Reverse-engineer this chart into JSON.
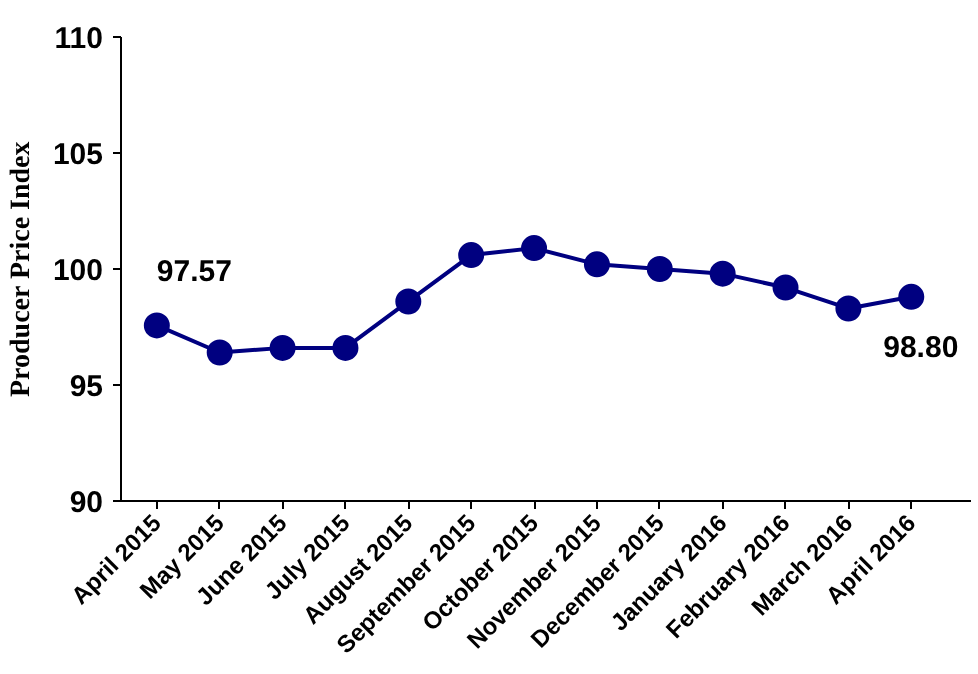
{
  "chart_data": {
    "type": "line",
    "ylabel": "Producer Price Index",
    "categories": [
      "April 2015",
      "May 2015",
      "June 2015",
      "July 2015",
      "August 2015",
      "September 2015",
      "October 2015",
      "November 2015",
      "December 2015",
      "January 2016",
      "February 2016",
      "March 2016",
      "April 2016"
    ],
    "series": [
      {
        "color": "#000080",
        "values": [
          97.57,
          96.4,
          96.6,
          96.6,
          98.6,
          100.6,
          100.9,
          100.2,
          100.0,
          99.8,
          99.2,
          98.3,
          98.8
        ],
        "value_labels": [
          "97.57",
          null,
          null,
          null,
          null,
          null,
          null,
          null,
          null,
          null,
          null,
          null,
          "98.80"
        ]
      }
    ],
    "ylim": [
      90,
      110
    ],
    "yticks": [
      90,
      95,
      100,
      105,
      110
    ],
    "grid": false,
    "marker": "circle",
    "line_style": "solid"
  }
}
